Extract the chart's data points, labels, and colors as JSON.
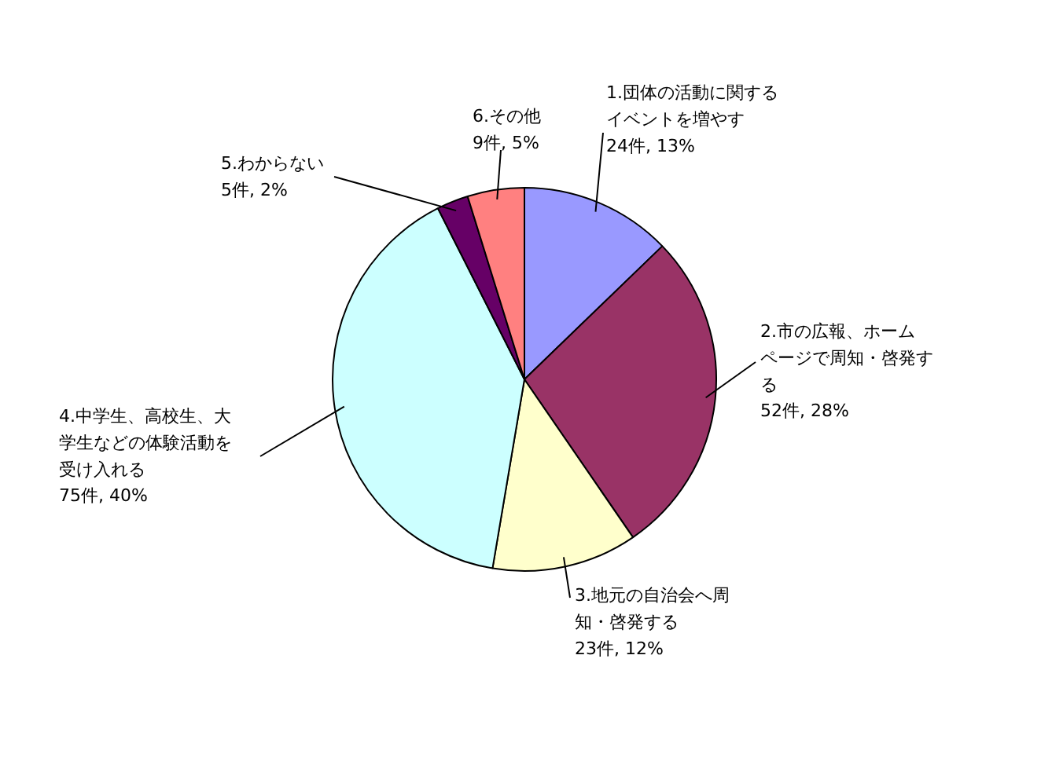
{
  "chart_data": {
    "type": "pie",
    "categories": [
      "1.団体の活動に関するイベントを増やす",
      "2.市の広報、ホームページで周知・啓発する",
      "3.地元の自治会へ周知・啓発する",
      "4.中学生、高校生、大学生などの体験活動を受け入れる",
      "5.わからない",
      "6.その他"
    ],
    "values": [
      24,
      52,
      23,
      75,
      5,
      9
    ],
    "colors": [
      "#9999ff",
      "#993366",
      "#ffffcc",
      "#ccffff",
      "#660066",
      "#ff8080"
    ],
    "value_labels": [
      "24件, 13%",
      "52件, 28%",
      "23件, 12%",
      "75件, 40%",
      "5件, 2%",
      "9件, 5%"
    ]
  }
}
